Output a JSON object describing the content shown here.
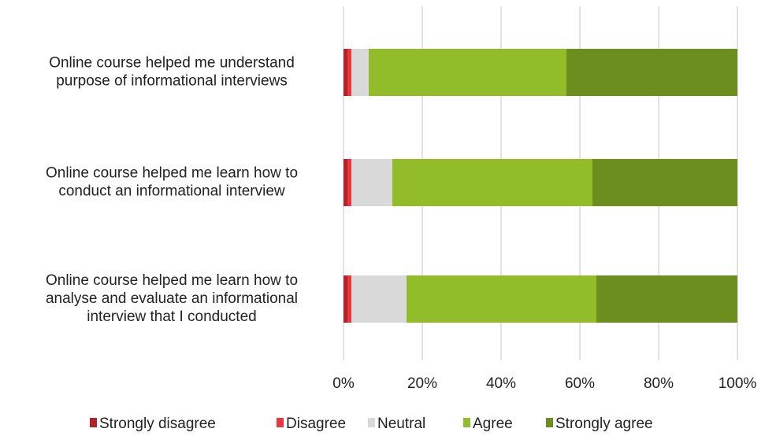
{
  "chart_data": {
    "type": "stacked_barh",
    "categories": [
      [
        "Online course helped me understand",
        "purpose of informational interviews"
      ],
      [
        "Online course helped me learn how to",
        "conduct an informational interview"
      ],
      [
        "Online course helped me learn how to",
        "analyse and evaluate an informational",
        "interview that I conducted"
      ]
    ],
    "series": [
      {
        "name": "Strongly disagree",
        "color": "#b0252b",
        "values": [
          1,
          1,
          1
        ]
      },
      {
        "name": "Disagree",
        "color": "#e8383d",
        "values": [
          1,
          1,
          1
        ]
      },
      {
        "name": "Neutral",
        "color": "#d9d9d9",
        "values": [
          4.4,
          10.4,
          14
        ]
      },
      {
        "name": "Agree",
        "color": "#92bc2a",
        "values": [
          50.2,
          50.8,
          48.2
        ]
      },
      {
        "name": "Strongly agree",
        "color": "#6b8e1f",
        "values": [
          43.4,
          36.8,
          35.8
        ]
      }
    ],
    "xlim": [
      0,
      100
    ],
    "xticks": [
      {
        "value": 0,
        "label": "0%"
      },
      {
        "value": 20,
        "label": "20%"
      },
      {
        "value": 40,
        "label": "40%"
      },
      {
        "value": 60,
        "label": "60%"
      },
      {
        "value": 80,
        "label": "80%"
      },
      {
        "value": 100,
        "label": "100%"
      }
    ],
    "grid": true,
    "legend": "bottom"
  }
}
